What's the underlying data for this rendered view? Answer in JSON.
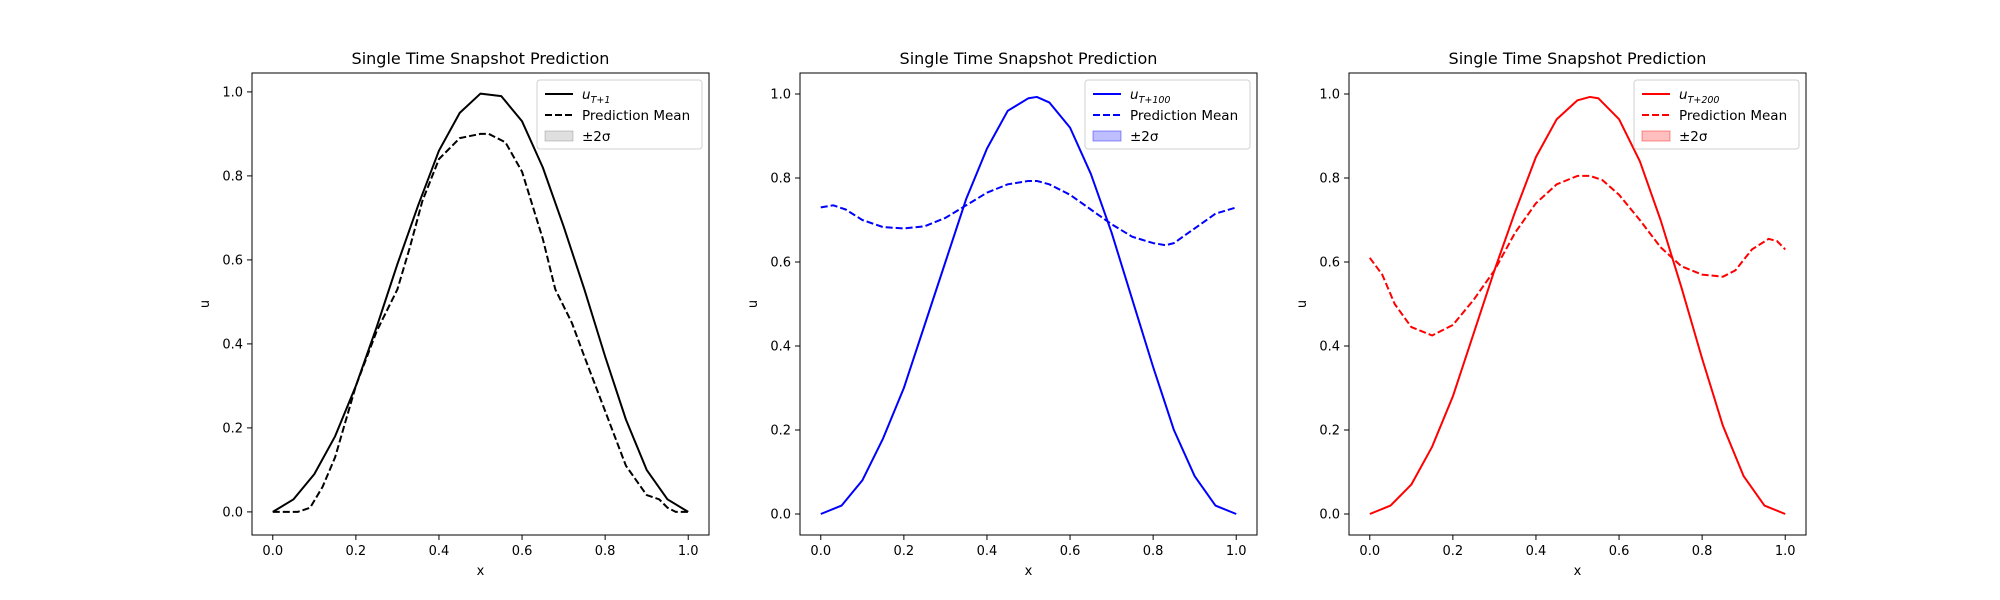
{
  "chart_data": [
    {
      "type": "line",
      "title": "Single Time Snapshot Prediction",
      "xlabel": "x",
      "ylabel": "u",
      "xlim": [
        -0.05,
        1.05
      ],
      "ylim": [
        -0.055,
        1.045
      ],
      "xticks": [
        0.0,
        0.2,
        0.4,
        0.6,
        0.8,
        1.0
      ],
      "yticks": [
        0.0,
        0.2,
        0.4,
        0.6,
        0.8,
        1.0
      ],
      "xtick_labels": [
        "0.0",
        "0.2",
        "0.4",
        "0.6",
        "0.8",
        "1.0"
      ],
      "ytick_labels": [
        "0.0",
        "0.2",
        "0.4",
        "0.6",
        "0.8",
        "1.0"
      ],
      "grid": false,
      "legend_position": "top-right",
      "color": "#000000",
      "band_color": "#808080",
      "legend": {
        "truth_main": "u",
        "truth_sub": "T+1",
        "mean": "Prediction Mean",
        "band": "±2σ"
      },
      "series": [
        {
          "name": "u_{T+1}",
          "style": "solid",
          "x": [
            0.0,
            0.05,
            0.1,
            0.15,
            0.2,
            0.25,
            0.3,
            0.35,
            0.4,
            0.45,
            0.5,
            0.55,
            0.6,
            0.65,
            0.7,
            0.75,
            0.8,
            0.85,
            0.9,
            0.95,
            1.0
          ],
          "y": [
            0.0,
            0.03,
            0.09,
            0.18,
            0.3,
            0.44,
            0.59,
            0.73,
            0.86,
            0.95,
            0.996,
            0.99,
            0.93,
            0.82,
            0.68,
            0.53,
            0.37,
            0.22,
            0.1,
            0.03,
            0.0
          ]
        },
        {
          "name": "Prediction Mean",
          "style": "dashed",
          "x": [
            0.0,
            0.03,
            0.06,
            0.09,
            0.12,
            0.15,
            0.2,
            0.25,
            0.3,
            0.33,
            0.36,
            0.4,
            0.45,
            0.5,
            0.52,
            0.56,
            0.6,
            0.65,
            0.68,
            0.72,
            0.75,
            0.8,
            0.85,
            0.9,
            0.93,
            0.95,
            0.97,
            1.0
          ],
          "y": [
            0.0,
            0.0,
            0.0,
            0.01,
            0.06,
            0.13,
            0.3,
            0.43,
            0.53,
            0.63,
            0.74,
            0.84,
            0.89,
            0.9,
            0.9,
            0.88,
            0.81,
            0.65,
            0.53,
            0.45,
            0.37,
            0.24,
            0.11,
            0.04,
            0.03,
            0.01,
            0.0,
            0.0
          ]
        }
      ],
      "band": {
        "name": "±2σ",
        "sigma2": 0.0
      }
    },
    {
      "type": "line",
      "title": "Single Time Snapshot Prediction",
      "xlabel": "x",
      "ylabel": "u",
      "xlim": [
        -0.05,
        1.05
      ],
      "ylim": [
        -0.05,
        1.05
      ],
      "xticks": [
        0.0,
        0.2,
        0.4,
        0.6,
        0.8,
        1.0
      ],
      "yticks": [
        0.0,
        0.2,
        0.4,
        0.6,
        0.8,
        1.0
      ],
      "xtick_labels": [
        "0.0",
        "0.2",
        "0.4",
        "0.6",
        "0.8",
        "1.0"
      ],
      "ytick_labels": [
        "0.0",
        "0.2",
        "0.4",
        "0.6",
        "0.8",
        "1.0"
      ],
      "grid": false,
      "legend_position": "top-right",
      "color": "#0000ff",
      "band_color": "#0000ff",
      "legend": {
        "truth_main": "u",
        "truth_sub": "T+100",
        "mean": "Prediction Mean",
        "band": "±2σ"
      },
      "series": [
        {
          "name": "u_{T+100}",
          "style": "solid",
          "x": [
            0.0,
            0.05,
            0.1,
            0.15,
            0.2,
            0.25,
            0.3,
            0.35,
            0.4,
            0.45,
            0.5,
            0.52,
            0.55,
            0.6,
            0.65,
            0.7,
            0.75,
            0.8,
            0.85,
            0.9,
            0.95,
            1.0
          ],
          "y": [
            0.0,
            0.02,
            0.08,
            0.18,
            0.3,
            0.45,
            0.6,
            0.75,
            0.87,
            0.96,
            0.99,
            0.993,
            0.98,
            0.92,
            0.81,
            0.67,
            0.51,
            0.35,
            0.2,
            0.09,
            0.02,
            0.0
          ]
        },
        {
          "name": "Prediction Mean",
          "style": "dashed",
          "x": [
            0.0,
            0.03,
            0.06,
            0.1,
            0.15,
            0.2,
            0.25,
            0.3,
            0.35,
            0.4,
            0.45,
            0.5,
            0.52,
            0.55,
            0.6,
            0.65,
            0.7,
            0.75,
            0.8,
            0.83,
            0.85,
            0.9,
            0.95,
            1.0
          ],
          "y": [
            0.73,
            0.735,
            0.725,
            0.7,
            0.683,
            0.68,
            0.685,
            0.705,
            0.735,
            0.765,
            0.785,
            0.793,
            0.793,
            0.785,
            0.76,
            0.725,
            0.69,
            0.66,
            0.645,
            0.64,
            0.645,
            0.68,
            0.715,
            0.73
          ]
        }
      ],
      "band": {
        "name": "±2σ",
        "sigma2": 0.0
      }
    },
    {
      "type": "line",
      "title": "Single Time Snapshot Prediction",
      "xlabel": "x",
      "ylabel": "u",
      "xlim": [
        -0.05,
        1.05
      ],
      "ylim": [
        -0.05,
        1.05
      ],
      "xticks": [
        0.0,
        0.2,
        0.4,
        0.6,
        0.8,
        1.0
      ],
      "yticks": [
        0.0,
        0.2,
        0.4,
        0.6,
        0.8,
        1.0
      ],
      "xtick_labels": [
        "0.0",
        "0.2",
        "0.4",
        "0.6",
        "0.8",
        "1.0"
      ],
      "ytick_labels": [
        "0.0",
        "0.2",
        "0.4",
        "0.6",
        "0.8",
        "1.0"
      ],
      "grid": false,
      "legend_position": "top-right",
      "color": "#ff0000",
      "band_color": "#ff0000",
      "legend": {
        "truth_main": "u",
        "truth_sub": "T+200",
        "mean": "Prediction Mean",
        "band": "±2σ"
      },
      "series": [
        {
          "name": "u_{T+200}",
          "style": "solid",
          "x": [
            0.0,
            0.05,
            0.1,
            0.15,
            0.2,
            0.25,
            0.3,
            0.35,
            0.4,
            0.45,
            0.5,
            0.53,
            0.55,
            0.6,
            0.65,
            0.7,
            0.75,
            0.8,
            0.85,
            0.9,
            0.95,
            1.0
          ],
          "y": [
            0.0,
            0.02,
            0.07,
            0.16,
            0.28,
            0.43,
            0.58,
            0.72,
            0.85,
            0.94,
            0.985,
            0.993,
            0.99,
            0.94,
            0.84,
            0.7,
            0.54,
            0.37,
            0.21,
            0.09,
            0.02,
            0.0
          ]
        },
        {
          "name": "Prediction Mean",
          "style": "dashed",
          "x": [
            0.0,
            0.03,
            0.06,
            0.1,
            0.15,
            0.2,
            0.25,
            0.3,
            0.35,
            0.4,
            0.45,
            0.5,
            0.53,
            0.56,
            0.6,
            0.65,
            0.7,
            0.75,
            0.8,
            0.85,
            0.88,
            0.92,
            0.96,
            0.98,
            1.0
          ],
          "y": [
            0.61,
            0.57,
            0.5,
            0.445,
            0.425,
            0.45,
            0.51,
            0.58,
            0.67,
            0.74,
            0.785,
            0.805,
            0.805,
            0.795,
            0.76,
            0.7,
            0.635,
            0.59,
            0.57,
            0.565,
            0.58,
            0.63,
            0.655,
            0.65,
            0.63
          ]
        }
      ],
      "band": {
        "name": "±2σ",
        "sigma2": 0.0
      }
    }
  ]
}
